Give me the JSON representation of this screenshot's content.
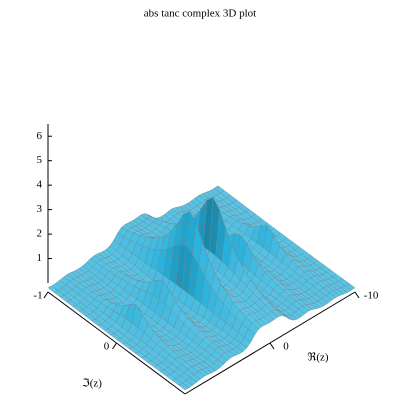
{
  "chart_data": {
    "type": "surface3d",
    "title": "abs tanc complex  3D plot",
    "x_label": "ℜ(z)",
    "y_label": "ℑ(z)",
    "xlim": [
      -10,
      10
    ],
    "xticks": [
      -10,
      0
    ],
    "ylim": [
      -1,
      1
    ],
    "yticks": [
      -1,
      0
    ],
    "zlim": [
      0,
      6.5
    ],
    "zticks": [
      1,
      2,
      3,
      4,
      5,
      6
    ],
    "color": "#5ccbe8"
  }
}
